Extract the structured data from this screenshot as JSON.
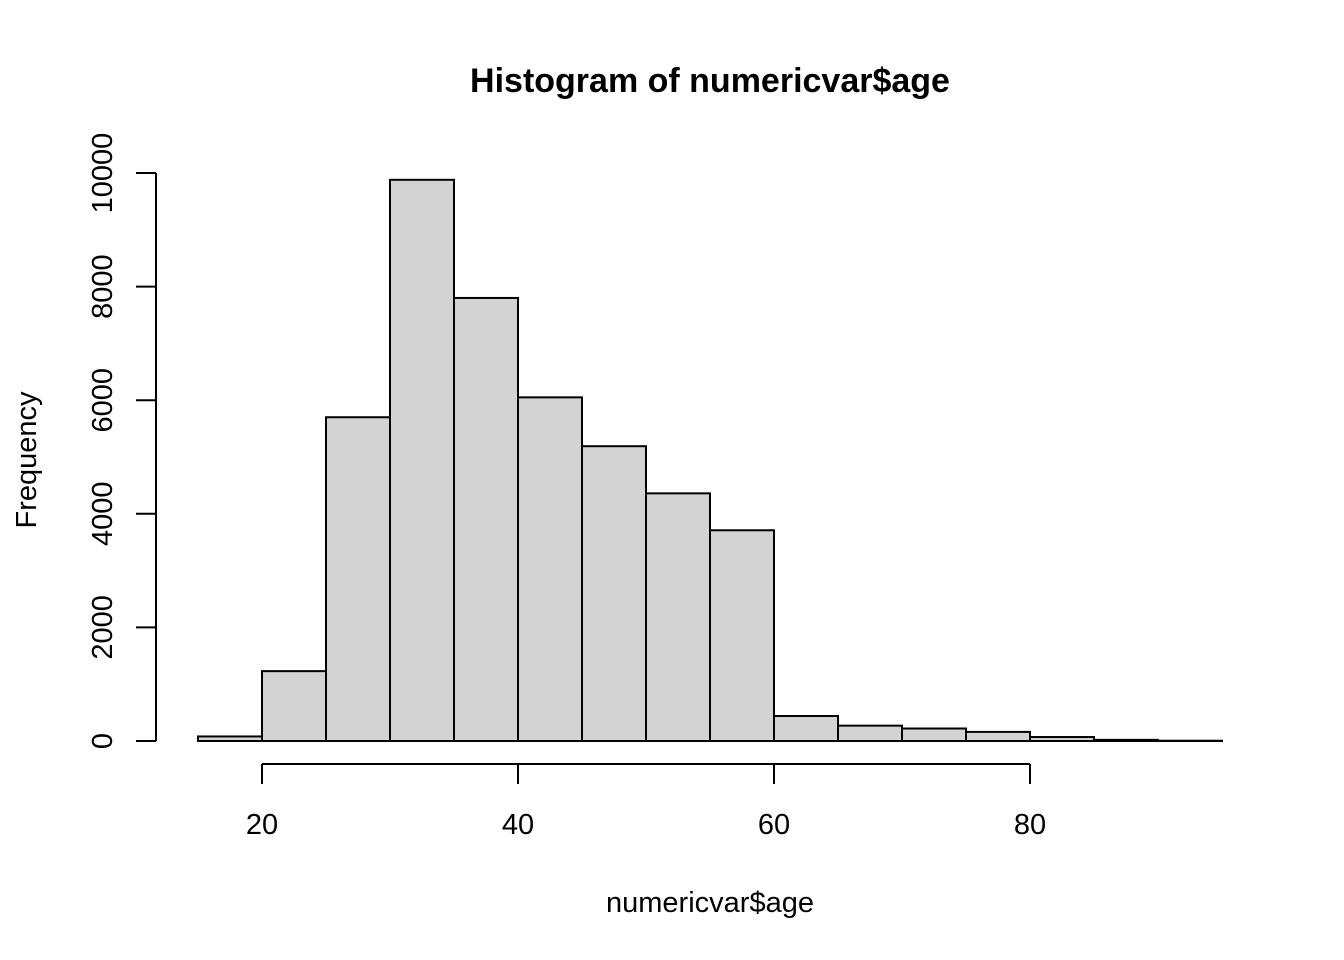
{
  "chart_data": {
    "type": "bar",
    "title": "Histogram of numericvar$age",
    "xlabel": "numericvar$age",
    "ylabel": "Frequency",
    "bin_width": 5,
    "bins": [
      {
        "start": 15,
        "end": 20,
        "count": 80
      },
      {
        "start": 20,
        "end": 25,
        "count": 1230
      },
      {
        "start": 25,
        "end": 30,
        "count": 5700
      },
      {
        "start": 30,
        "end": 35,
        "count": 9880
      },
      {
        "start": 35,
        "end": 40,
        "count": 7800
      },
      {
        "start": 40,
        "end": 45,
        "count": 6050
      },
      {
        "start": 45,
        "end": 50,
        "count": 5190
      },
      {
        "start": 50,
        "end": 55,
        "count": 4360
      },
      {
        "start": 55,
        "end": 60,
        "count": 3710
      },
      {
        "start": 60,
        "end": 65,
        "count": 440
      },
      {
        "start": 65,
        "end": 70,
        "count": 270
      },
      {
        "start": 70,
        "end": 75,
        "count": 220
      },
      {
        "start": 75,
        "end": 80,
        "count": 160
      },
      {
        "start": 80,
        "end": 85,
        "count": 70
      },
      {
        "start": 85,
        "end": 90,
        "count": 20
      },
      {
        "start": 90,
        "end": 95,
        "count": 5
      }
    ],
    "x_ticks": [
      20,
      40,
      60,
      80
    ],
    "x_tick_labels": [
      "20",
      "40",
      "60",
      "80"
    ],
    "y_ticks": [
      0,
      2000,
      4000,
      6000,
      8000,
      10000
    ],
    "y_tick_labels": [
      "0",
      "2000",
      "4000",
      "6000",
      "8000",
      "10000"
    ],
    "xlim": [
      15,
      95
    ],
    "ylim": [
      0,
      10000
    ],
    "bar_fill": "#d3d3d3",
    "bar_stroke": "#000000",
    "grid": false,
    "legend": "none"
  }
}
